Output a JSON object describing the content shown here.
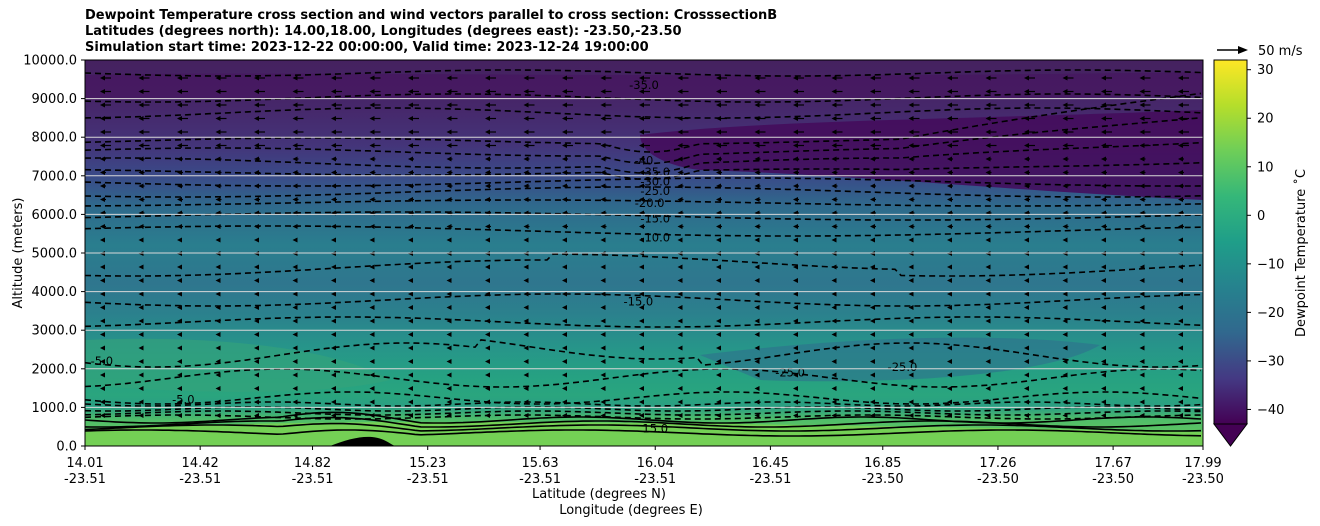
{
  "chart_data": {
    "type": "contour",
    "title_lines": [
      "Dewpoint Temperature cross section and wind vectors parallel to cross section: CrosssectionB",
      "Latitudes (degrees north): 14.00,18.00, Longitudes (degrees east): -23.50,-23.50",
      "Simulation start time: 2023-12-22 00:00:00, Valid time: 2023-12-24 19:00:00"
    ],
    "ylabel": "Altitude (meters)",
    "xlabel_lat": "Latitude (degrees N)",
    "xlabel_lon": "Longitude (degrees E)",
    "ylim": [
      0,
      10000
    ],
    "yticks": [
      "0.0",
      "1000.0",
      "2000.0",
      "3000.0",
      "4000.0",
      "5000.0",
      "6000.0",
      "7000.0",
      "8000.0",
      "9000.0",
      "10000.0"
    ],
    "xticks_lat": [
      "14.01",
      "14.42",
      "14.82",
      "15.23",
      "15.63",
      "16.04",
      "16.45",
      "16.85",
      "17.26",
      "17.67",
      "17.99"
    ],
    "xticks_lon": [
      "-23.51",
      "-23.51",
      "-23.51",
      "-23.51",
      "-23.51",
      "-23.51",
      "-23.51",
      "-23.50",
      "-23.50",
      "-23.50",
      "-23.50"
    ],
    "grid": "horizontal",
    "colorbar": {
      "label": "Dewpoint Temperature ˚C",
      "range": [
        -43,
        32
      ],
      "ticks": [
        "30",
        "20",
        "10",
        "0",
        "−10",
        "−20",
        "−30",
        "−40"
      ],
      "colormap": "viridis",
      "extend": "min"
    },
    "quiver_key": "50 m/s",
    "contour_labels": [
      {
        "text": "-35.0",
        "lat": 16.0,
        "alt": 9350
      },
      {
        "text": "-40",
        "lat": 16.0,
        "alt": 7400
      },
      {
        "text": "-35.0",
        "lat": 16.04,
        "alt": 7100
      },
      {
        "text": "-30.0",
        "lat": 16.04,
        "alt": 6850
      },
      {
        "text": "-25.0",
        "lat": 16.04,
        "alt": 6600
      },
      {
        "text": "-20.0",
        "lat": 16.02,
        "alt": 6300
      },
      {
        "text": "-15.0",
        "lat": 16.04,
        "alt": 5900
      },
      {
        "text": "-10.0",
        "lat": 16.04,
        "alt": 5400
      },
      {
        "text": "-15.0",
        "lat": 15.98,
        "alt": 3750
      },
      {
        "text": "-25.0",
        "lat": 16.52,
        "alt": 1900
      },
      {
        "text": "-25.0",
        "lat": 16.92,
        "alt": 2050
      },
      {
        "text": "-5.0",
        "lat": 14.07,
        "alt": 2200
      },
      {
        "text": "-5.0",
        "lat": 14.36,
        "alt": 1200
      },
      {
        "text": "15.0",
        "lat": 16.04,
        "alt": 450
      }
    ],
    "notes_on_data": "Filled contours show dewpoint temperature: about -40 ˚C above 7000 m, about -10 ˚C around 4000-5500 m, about -5 ˚C near 2000 m and 15-20 ˚C below 700 m."
  }
}
